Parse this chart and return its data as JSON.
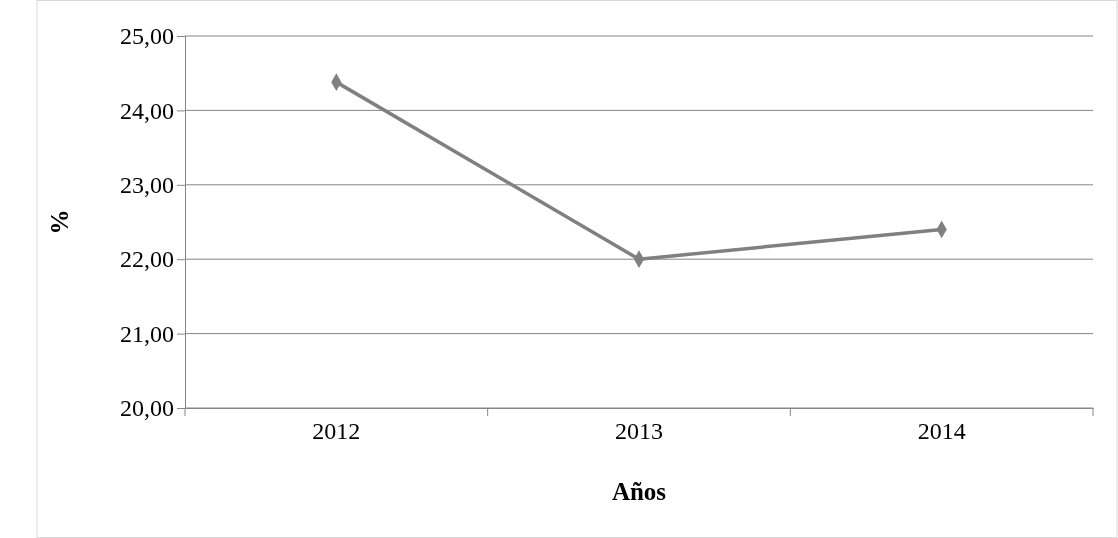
{
  "chart_data": {
    "type": "line",
    "xlabel": "Años",
    "ylabel": "%",
    "categories": [
      "2012",
      "2013",
      "2014"
    ],
    "series": [
      {
        "color": "#808080",
        "values": [
          24.38,
          22.0,
          22.4
        ]
      }
    ],
    "ylim": [
      20,
      25
    ],
    "yticks": [
      {
        "value": 20,
        "label": "20,00"
      },
      {
        "value": 21,
        "label": "21,00"
      },
      {
        "value": 22,
        "label": "22,00"
      },
      {
        "value": 23,
        "label": "23,00"
      },
      {
        "value": 24,
        "label": "24,00"
      },
      {
        "value": 25,
        "label": "25,00"
      }
    ],
    "grid": "y",
    "marker": "diamond",
    "line_style": "solid"
  }
}
